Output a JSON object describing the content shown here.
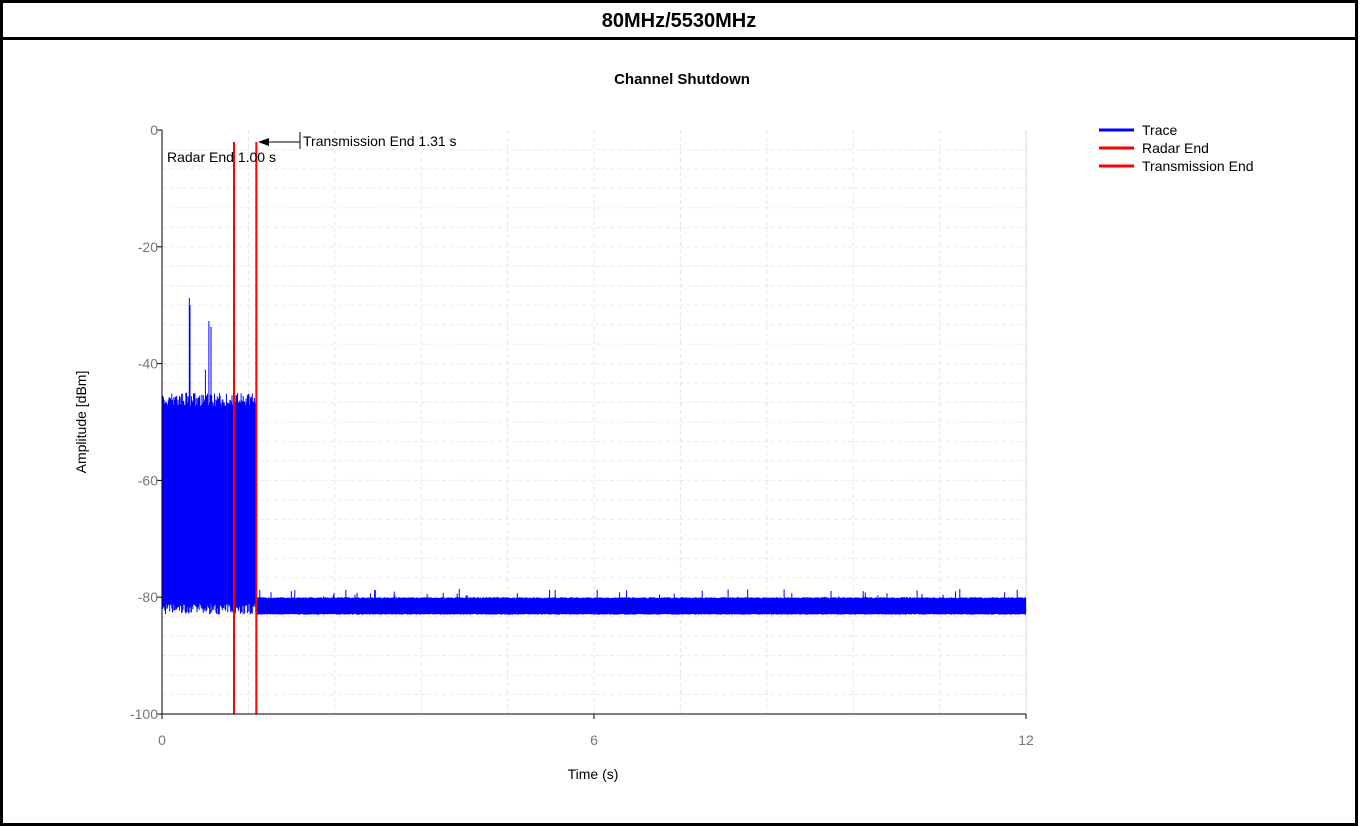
{
  "header": {
    "title": "80MHz/5530MHz"
  },
  "chart_data": {
    "type": "line",
    "title": "Channel Shutdown",
    "xlabel": "Time (s)",
    "ylabel": "Amplitude [dBm]",
    "xlim": [
      0,
      12
    ],
    "ylim": [
      -100,
      0
    ],
    "xticks": [
      0,
      6,
      12
    ],
    "yticks": [
      0,
      -20,
      -40,
      -60,
      -80,
      -100
    ],
    "grid": true,
    "legend_position": "top-right",
    "series": [
      {
        "name": "Trace",
        "color": "#0000ff",
        "segments": [
          {
            "x_start": 0,
            "x_end": 1.31,
            "y_min": -83,
            "y_max": -45
          },
          {
            "x_start": 1.31,
            "x_end": 12,
            "y_min": -83,
            "y_max": -80
          }
        ]
      },
      {
        "name": "Radar End",
        "color": "#ff0000",
        "x": 1.0
      },
      {
        "name": "Transmission End",
        "color": "#ff0000",
        "x": 1.31
      }
    ],
    "annotations": [
      {
        "text": "Radar End 1.00 s"
      },
      {
        "text": "Transmission End 1.31 s"
      }
    ]
  }
}
